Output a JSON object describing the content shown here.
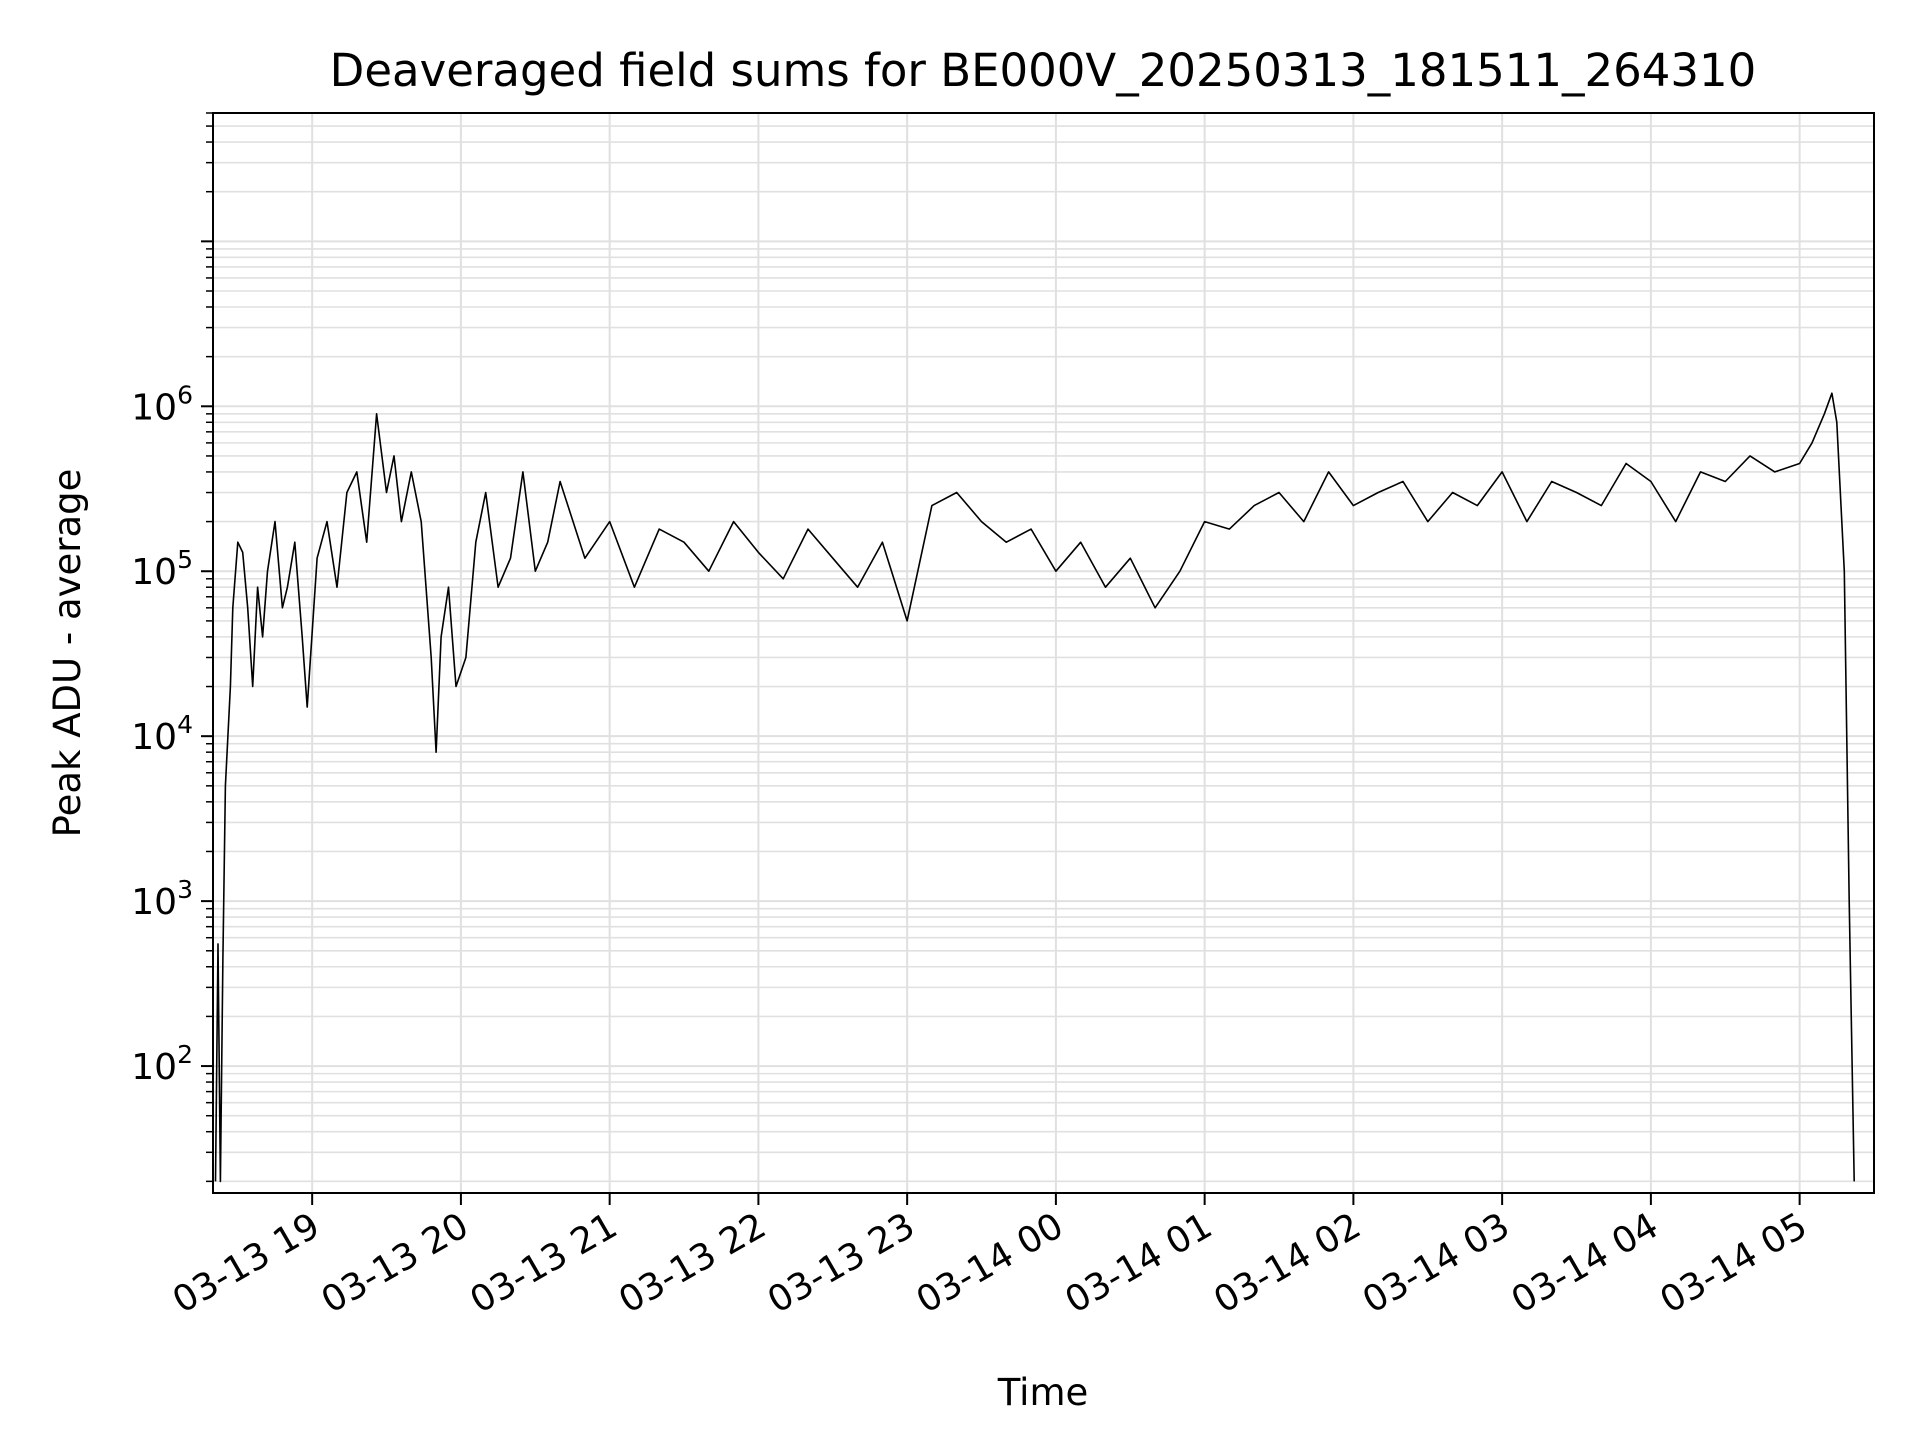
{
  "chart_data": {
    "type": "line",
    "title": "Deaveraged field sums for BE000V_20250313_181511_264310",
    "xlabel": "Time",
    "ylabel": "Peak ADU - average",
    "yscale": "log",
    "grid": true,
    "line_color": "#000000",
    "grid_color": "#e0e0e0",
    "xlim": [
      "03-13 18:20",
      "03-14 05:30"
    ],
    "ylim": [
      17,
      60000000
    ],
    "x_ticks": [
      "03-13 19",
      "03-13 20",
      "03-13 21",
      "03-13 22",
      "03-13 23",
      "03-14 00",
      "03-14 01",
      "03-14 02",
      "03-14 03",
      "03-14 04",
      "03-14 05"
    ],
    "y_ticks": [
      {
        "base": "10",
        "exp": "2",
        "value": 100
      },
      {
        "base": "10",
        "exp": "3",
        "value": 1000
      },
      {
        "base": "10",
        "exp": "4",
        "value": 10000
      },
      {
        "base": "10",
        "exp": "5",
        "value": 100000
      },
      {
        "base": "10",
        "exp": "6",
        "value": 1000000
      }
    ],
    "series": [
      {
        "x": [
          "03-13 18:21",
          "03-13 18:22",
          "03-13 18:23",
          "03-13 18:24",
          "03-13 18:25",
          "03-13 18:27",
          "03-13 18:28",
          "03-13 18:30",
          "03-13 18:32",
          "03-13 18:34",
          "03-13 18:36",
          "03-13 18:38",
          "03-13 18:40",
          "03-13 18:42",
          "03-13 18:45",
          "03-13 18:48",
          "03-13 18:50",
          "03-13 18:53",
          "03-13 18:56",
          "03-13 18:58",
          "03-13 19:02",
          "03-13 19:06",
          "03-13 19:10",
          "03-13 19:14",
          "03-13 19:18",
          "03-13 19:22",
          "03-13 19:26",
          "03-13 19:30",
          "03-13 19:33",
          "03-13 19:36",
          "03-13 19:40",
          "03-13 19:44",
          "03-13 19:48",
          "03-13 19:50",
          "03-13 19:52",
          "03-13 19:55",
          "03-13 19:58",
          "03-13 20:02",
          "03-13 20:06",
          "03-13 20:10",
          "03-13 20:15",
          "03-13 20:20",
          "03-13 20:25",
          "03-13 20:30",
          "03-13 20:35",
          "03-13 20:40",
          "03-13 20:50",
          "03-13 21:00",
          "03-13 21:10",
          "03-13 21:20",
          "03-13 21:30",
          "03-13 21:40",
          "03-13 21:50",
          "03-13 22:00",
          "03-13 22:10",
          "03-13 22:20",
          "03-13 22:30",
          "03-13 22:40",
          "03-13 22:50",
          "03-13 23:00",
          "03-13 23:10",
          "03-13 23:20",
          "03-13 23:30",
          "03-13 23:40",
          "03-13 23:50",
          "03-14 00:00",
          "03-14 00:10",
          "03-14 00:20",
          "03-14 00:30",
          "03-14 00:40",
          "03-14 00:50",
          "03-14 01:00",
          "03-14 01:10",
          "03-14 01:20",
          "03-14 01:30",
          "03-14 01:40",
          "03-14 01:50",
          "03-14 02:00",
          "03-14 02:10",
          "03-14 02:20",
          "03-14 02:30",
          "03-14 02:40",
          "03-14 02:50",
          "03-14 03:00",
          "03-14 03:10",
          "03-14 03:20",
          "03-14 03:30",
          "03-14 03:40",
          "03-14 03:50",
          "03-14 04:00",
          "03-14 04:10",
          "03-14 04:20",
          "03-14 04:30",
          "03-14 04:40",
          "03-14 04:50",
          "03-14 05:00",
          "03-14 05:05",
          "03-14 05:10",
          "03-14 05:13",
          "03-14 05:15",
          "03-14 05:18",
          "03-14 05:20",
          "03-14 05:22"
        ],
        "y": [
          20,
          550,
          20,
          450,
          5000,
          20000,
          60000,
          150000,
          130000,
          60000,
          20000,
          80000,
          40000,
          100000,
          200000,
          60000,
          80000,
          150000,
          40000,
          15000,
          120000,
          200000,
          80000,
          300000,
          400000,
          150000,
          900000,
          300000,
          500000,
          200000,
          400000,
          200000,
          30000,
          8000,
          40000,
          80000,
          20000,
          30000,
          150000,
          300000,
          80000,
          120000,
          400000,
          100000,
          150000,
          350000,
          120000,
          200000,
          80000,
          180000,
          150000,
          100000,
          200000,
          130000,
          90000,
          180000,
          120000,
          80000,
          150000,
          50000,
          250000,
          300000,
          200000,
          150000,
          180000,
          100000,
          150000,
          80000,
          120000,
          60000,
          100000,
          200000,
          180000,
          250000,
          300000,
          200000,
          400000,
          250000,
          300000,
          350000,
          200000,
          300000,
          250000,
          400000,
          200000,
          350000,
          300000,
          250000,
          450000,
          350000,
          200000,
          400000,
          350000,
          500000,
          400000,
          450000,
          600000,
          900000,
          1200000,
          800000,
          100000,
          1000,
          20
        ]
      }
    ]
  }
}
